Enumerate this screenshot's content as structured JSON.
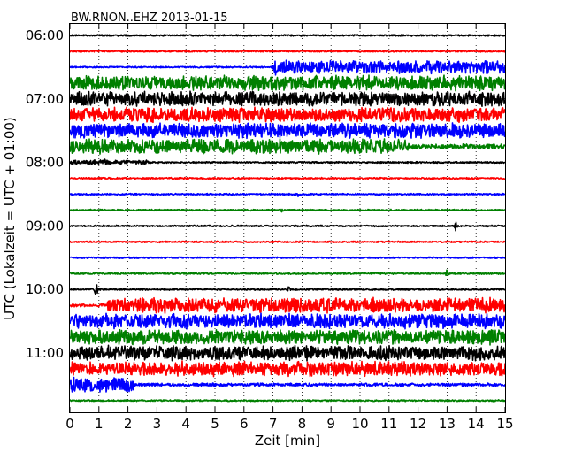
{
  "chart_data": {
    "type": "line",
    "title": "BW.RNON..EHZ 2013-01-15",
    "xlabel": "Zeit  [min]",
    "ylabel": "UTC (Lokalzeit = UTC + 01:00)",
    "xlim": [
      0,
      15
    ],
    "x_ticks": [
      "0",
      "1",
      "2",
      "3",
      "4",
      "5",
      "6",
      "7",
      "8",
      "9",
      "10",
      "11",
      "12",
      "13",
      "14",
      "15"
    ],
    "y_tick_labels": [
      "06:00",
      "07:00",
      "08:00",
      "09:00",
      "10:00",
      "11:00"
    ],
    "grid": true,
    "row_interval_min": 15,
    "colors": [
      "#000000",
      "#ff0000",
      "#0000ff",
      "#008000"
    ],
    "rows": [
      {
        "start": "06:00",
        "segments": [
          [
            0,
            15,
            1
          ]
        ]
      },
      {
        "start": "06:15",
        "segments": [
          [
            0,
            15,
            1
          ]
        ]
      },
      {
        "start": "06:30",
        "segments": [
          [
            0,
            7.05,
            1
          ],
          [
            7.05,
            15,
            8
          ]
        ]
      },
      {
        "start": "06:45",
        "segments": [
          [
            0,
            15,
            9
          ]
        ]
      },
      {
        "start": "07:00",
        "segments": [
          [
            0,
            15,
            9
          ]
        ]
      },
      {
        "start": "07:15",
        "segments": [
          [
            0,
            15,
            9
          ]
        ]
      },
      {
        "start": "07:30",
        "segments": [
          [
            0,
            15,
            9
          ]
        ]
      },
      {
        "start": "07:45",
        "segments": [
          [
            0,
            11.6,
            9
          ],
          [
            11.6,
            15,
            3
          ]
        ]
      },
      {
        "start": "08:00",
        "segments": [
          [
            0,
            2.7,
            3
          ],
          [
            2.7,
            15,
            1
          ]
        ]
      },
      {
        "start": "08:15",
        "segments": [
          [
            0,
            15,
            1
          ]
        ]
      },
      {
        "start": "08:30",
        "segments": [
          [
            0,
            15,
            1
          ]
        ]
      },
      {
        "start": "08:45",
        "segments": [
          [
            0,
            15,
            1
          ]
        ]
      },
      {
        "start": "09:00",
        "segments": [
          [
            0,
            15,
            1
          ]
        ]
      },
      {
        "start": "09:15",
        "segments": [
          [
            0,
            15,
            1
          ]
        ]
      },
      {
        "start": "09:30",
        "segments": [
          [
            0,
            15,
            1
          ]
        ]
      },
      {
        "start": "09:45",
        "segments": [
          [
            0,
            15,
            1
          ]
        ]
      },
      {
        "start": "10:00",
        "segments": [
          [
            0,
            15,
            1
          ]
        ]
      },
      {
        "start": "10:15",
        "segments": [
          [
            0,
            1.3,
            2
          ],
          [
            1.3,
            15,
            9
          ]
        ]
      },
      {
        "start": "10:30",
        "segments": [
          [
            0,
            15,
            9
          ]
        ]
      },
      {
        "start": "10:45",
        "segments": [
          [
            0,
            15,
            9
          ]
        ]
      },
      {
        "start": "11:00",
        "segments": [
          [
            0,
            15,
            9
          ]
        ]
      },
      {
        "start": "11:15",
        "segments": [
          [
            0,
            15,
            9
          ]
        ]
      },
      {
        "start": "11:30",
        "segments": [
          [
            0,
            2.2,
            9
          ],
          [
            2.2,
            15,
            2
          ]
        ]
      },
      {
        "start": "11:45",
        "segments": [
          [
            0,
            15,
            1
          ]
        ]
      }
    ],
    "events": [
      {
        "row": 2,
        "x": 7.05,
        "amp": 11
      },
      {
        "row": 7,
        "x": 11.6,
        "amp": 9
      },
      {
        "row": 8,
        "x": 1.2,
        "amp": 4
      },
      {
        "row": 10,
        "x": 7.85,
        "amp": 5
      },
      {
        "row": 11,
        "x": 7.3,
        "amp": 3
      },
      {
        "row": 12,
        "x": 13.3,
        "amp": 7
      },
      {
        "row": 15,
        "x": 13.0,
        "amp": 5
      },
      {
        "row": 16,
        "x": 0.9,
        "amp": 10
      },
      {
        "row": 16,
        "x": 7.55,
        "amp": 5
      },
      {
        "row": 17,
        "x": 1.3,
        "amp": 8
      },
      {
        "row": 22,
        "x": 2.15,
        "amp": 10
      }
    ]
  }
}
